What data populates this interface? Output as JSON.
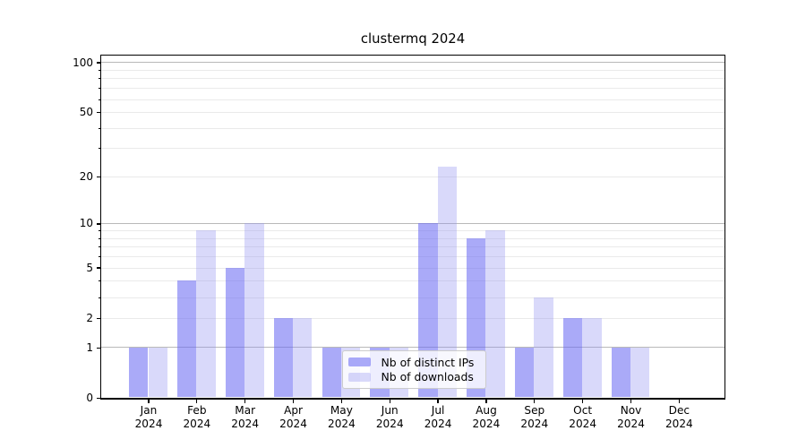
{
  "chart_data": {
    "type": "bar",
    "title": "clustermq 2024",
    "x_categories": [
      "Jan",
      "Feb",
      "Mar",
      "Apr",
      "May",
      "Jun",
      "Jul",
      "Aug",
      "Sep",
      "Oct",
      "Nov",
      "Dec"
    ],
    "x_year": "2024",
    "series": [
      {
        "name": "Nb of distinct IPs",
        "color": "#a9a9f6",
        "values": [
          1,
          4,
          5,
          2,
          1,
          1,
          10,
          8,
          1,
          2,
          1,
          0
        ]
      },
      {
        "name": "Nb of downloads",
        "color": "#d9d9fa",
        "values": [
          1,
          9,
          10,
          2,
          1,
          1,
          23,
          9,
          3,
          2,
          1,
          0
        ]
      }
    ],
    "yscale": "log1p",
    "ylim": [
      0,
      112
    ],
    "y_tick_labels": [
      0,
      1,
      2,
      5,
      10,
      20,
      50,
      100
    ],
    "y_major_gridlines": [
      1,
      10,
      100
    ],
    "y_minor_gridlines": [
      2,
      3,
      4,
      5,
      6,
      7,
      8,
      9,
      20,
      30,
      40,
      50,
      60,
      70,
      80,
      90
    ],
    "grid": true,
    "legend_position": "lower center"
  },
  "legend": {
    "items": [
      {
        "label": "Nb of distinct IPs"
      },
      {
        "label": "Nb of downloads"
      }
    ]
  },
  "colors": {
    "ip_bar_fill": "rgba(105,105,243,0.57)",
    "dl_bar_fill": "rgba(146,146,241,0.35)",
    "major_grid": "#b9b9b9",
    "minor_grid": "#eaeaea",
    "axis": "#000000",
    "legend_border": "#cccccc",
    "legend_bg": "rgba(255,255,255,0.8)",
    "text": "#000000"
  }
}
